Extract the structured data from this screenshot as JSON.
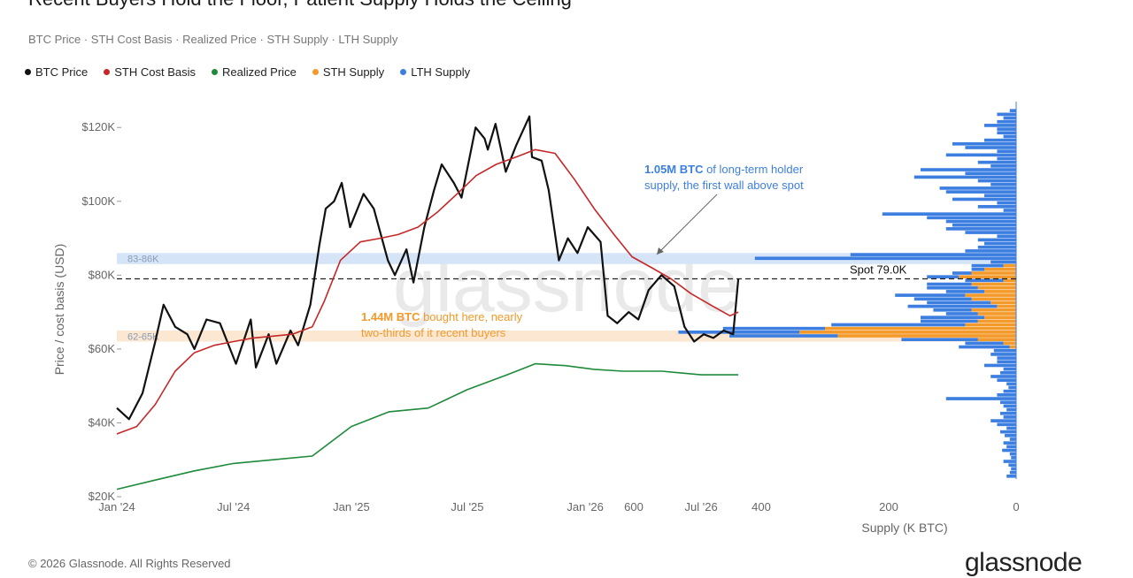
{
  "header": {
    "title": "Recent Buyers Hold the Floor, Patient Supply Holds the Ceiling",
    "subtitle": "BTC Price · STH Cost Basis · Realized Price · STH Supply · LTH Supply"
  },
  "legend": [
    {
      "label": "BTC Price",
      "color": "#111111"
    },
    {
      "label": "STH Cost Basis",
      "color": "#c62828"
    },
    {
      "label": "Realized Price",
      "color": "#1e8a3a"
    },
    {
      "label": "STH Supply",
      "color": "#f39a2b"
    },
    {
      "label": "LTH Supply",
      "color": "#3d7fe0"
    }
  ],
  "footer": {
    "copyright": "© 2026 Glassnode. All Rights Reserved",
    "brand": "glassnode"
  },
  "watermark": "glassnode",
  "annotations": {
    "lth_bold": "1.05M BTC",
    "lth_rest1": " of long-term holder",
    "lth_line2": "supply, the first wall above spot",
    "sth_bold": "1.44M BTC",
    "sth_rest1": " bought here, nearly",
    "sth_line2": "two-thirds of it recent buyers",
    "band_upper": "83-86K",
    "band_lower": "62-65K",
    "spot": "Spot 79.0K"
  },
  "chart_data": [
    {
      "type": "line",
      "title": "Recent Buyers Hold the Floor, Patient Supply Holds the Ceiling",
      "ylabel": "Price / cost basis (USD)",
      "xlabel": "",
      "ylim": [
        20000,
        127000
      ],
      "y_ticks": [
        20000,
        40000,
        60000,
        80000,
        100000,
        120000
      ],
      "y_tick_labels": [
        "$20K",
        "$40K",
        "$60K",
        "$80K",
        "$100K",
        "$120K"
      ],
      "x_ticks": [
        "2024-01-01",
        "2024-07-01",
        "2025-01-01",
        "2025-07-01",
        "2026-01-01",
        "2026-07-01"
      ],
      "x_tick_labels": [
        "Jan '24",
        "Jul '24",
        "Jan '25",
        "Jul '25",
        "Jan '26",
        "Jul '26"
      ],
      "x_range": [
        "2024-01-01",
        "2026-09-30"
      ],
      "grid": false,
      "bands": [
        {
          "label": "83-86K",
          "low": 83000,
          "high": 86000,
          "color": "#d6e4f7"
        },
        {
          "label": "62-65K",
          "low": 62000,
          "high": 65000,
          "color": "#fbe7d2"
        }
      ],
      "spot": {
        "label": "Spot 79.0K",
        "value": 79000
      },
      "series": [
        {
          "name": "BTC Price",
          "color": "#111111",
          "x": [
            "2024-01-01",
            "2024-01-20",
            "2024-02-10",
            "2024-03-01",
            "2024-03-14",
            "2024-04-01",
            "2024-04-20",
            "2024-05-01",
            "2024-05-20",
            "2024-06-10",
            "2024-07-05",
            "2024-07-28",
            "2024-08-05",
            "2024-08-25",
            "2024-09-06",
            "2024-09-28",
            "2024-10-10",
            "2024-10-29",
            "2024-11-12",
            "2024-11-22",
            "2024-12-05",
            "2024-12-17",
            "2024-12-30",
            "2025-01-20",
            "2025-02-05",
            "2025-02-27",
            "2025-03-10",
            "2025-03-28",
            "2025-04-08",
            "2025-04-25",
            "2025-05-10",
            "2025-05-22",
            "2025-06-10",
            "2025-06-22",
            "2025-07-14",
            "2025-07-28",
            "2025-08-02",
            "2025-08-14",
            "2025-08-30",
            "2025-09-15",
            "2025-10-06",
            "2025-10-10",
            "2025-10-25",
            "2025-11-05",
            "2025-11-21",
            "2025-12-05",
            "2025-12-20",
            "2026-01-05",
            "2026-01-25",
            "2026-02-05",
            "2026-02-20",
            "2026-03-10",
            "2026-03-25",
            "2026-04-10",
            "2026-04-30",
            "2026-05-20",
            "2026-06-05",
            "2026-06-20",
            "2026-07-05",
            "2026-07-20",
            "2026-08-05",
            "2026-08-20",
            "2026-08-28"
          ],
          "values": [
            44000,
            41000,
            48000,
            62000,
            72000,
            66000,
            64000,
            60000,
            68000,
            67000,
            56000,
            68000,
            55000,
            64000,
            56000,
            65000,
            61000,
            72000,
            88000,
            98000,
            100000,
            105000,
            93000,
            102000,
            98000,
            84000,
            80000,
            87000,
            78000,
            93000,
            103000,
            110000,
            105000,
            101000,
            120000,
            117000,
            114000,
            121000,
            108000,
            115000,
            123000,
            112000,
            111000,
            103000,
            84000,
            90000,
            86000,
            93000,
            89000,
            69000,
            67000,
            70000,
            68000,
            76000,
            80000,
            77000,
            66000,
            62000,
            64000,
            63000,
            65000,
            64000,
            79000
          ]
        },
        {
          "name": "STH Cost Basis",
          "color": "#c62828",
          "x": [
            "2024-01-01",
            "2024-02-01",
            "2024-03-01",
            "2024-04-01",
            "2024-05-01",
            "2024-06-01",
            "2024-07-01",
            "2024-08-01",
            "2024-09-01",
            "2024-10-01",
            "2024-11-01",
            "2024-11-20",
            "2024-12-15",
            "2025-01-15",
            "2025-02-15",
            "2025-03-15",
            "2025-04-15",
            "2025-05-15",
            "2025-06-15",
            "2025-07-15",
            "2025-08-15",
            "2025-09-15",
            "2025-10-15",
            "2025-11-15",
            "2025-12-15",
            "2026-01-15",
            "2026-02-15",
            "2026-03-15",
            "2026-04-15",
            "2026-05-15",
            "2026-06-15",
            "2026-07-15",
            "2026-08-15",
            "2026-08-28"
          ],
          "values": [
            37000,
            39000,
            45000,
            54000,
            59000,
            61000,
            62000,
            63000,
            63500,
            64000,
            66000,
            73000,
            84000,
            89000,
            90000,
            91000,
            93000,
            97000,
            102000,
            107000,
            110000,
            112000,
            114000,
            113000,
            106000,
            98000,
            91000,
            85000,
            82000,
            79000,
            75000,
            72000,
            69000,
            70000
          ]
        },
        {
          "name": "Realized Price",
          "color": "#1e8a3a",
          "x": [
            "2024-01-01",
            "2024-03-01",
            "2024-05-01",
            "2024-07-01",
            "2024-09-01",
            "2024-11-01",
            "2025-01-01",
            "2025-03-01",
            "2025-05-01",
            "2025-07-01",
            "2025-09-01",
            "2025-10-15",
            "2025-12-01",
            "2026-01-15",
            "2026-03-01",
            "2026-05-01",
            "2026-07-01",
            "2026-08-28"
          ],
          "values": [
            22000,
            24500,
            27000,
            29000,
            30000,
            31000,
            39000,
            43000,
            44000,
            49000,
            53000,
            56000,
            55500,
            54500,
            54000,
            54000,
            53000,
            53000
          ]
        }
      ]
    },
    {
      "type": "bar",
      "orientation": "horizontal",
      "xlabel": "Supply (K BTC)",
      "xlim": [
        700,
        0
      ],
      "x_ticks": [
        600,
        400,
        200,
        0
      ],
      "y_shared_with_price_axis": true,
      "bins_usd": [
        25000,
        26000,
        27000,
        28000,
        29000,
        30000,
        31000,
        32000,
        33000,
        34000,
        35000,
        36000,
        37000,
        38000,
        39000,
        40000,
        41000,
        42000,
        43000,
        44000,
        45000,
        46000,
        47000,
        48000,
        49000,
        50000,
        51000,
        52000,
        53000,
        54000,
        55000,
        56000,
        57000,
        58000,
        59000,
        60000,
        61000,
        62000,
        63000,
        64000,
        65000,
        66000,
        67000,
        68000,
        69000,
        70000,
        71000,
        72000,
        73000,
        74000,
        75000,
        76000,
        77000,
        78000,
        79000,
        80000,
        81000,
        82000,
        83000,
        84000,
        85000,
        86000,
        87000,
        88000,
        89000,
        90000,
        91000,
        92000,
        93000,
        94000,
        95000,
        96000,
        97000,
        98000,
        99000,
        100000,
        101000,
        102000,
        103000,
        104000,
        105000,
        106000,
        107000,
        108000,
        109000,
        110000,
        111000,
        112000,
        113000,
        114000,
        115000,
        116000,
        117000,
        118000,
        119000,
        120000,
        121000,
        122000,
        123000,
        124000
      ],
      "series": [
        {
          "name": "STH Supply",
          "color": "#f39a2b",
          "values": [
            0,
            0,
            0,
            0,
            0,
            0,
            0,
            0,
            0,
            0,
            0,
            0,
            0,
            0,
            0,
            0,
            0,
            0,
            0,
            0,
            0,
            0,
            0,
            0,
            0,
            0,
            0,
            0,
            0,
            0,
            0,
            0,
            0,
            0,
            0,
            10,
            20,
            60,
            280,
            340,
            300,
            80,
            60,
            50,
            60,
            70,
            30,
            40,
            70,
            80,
            50,
            60,
            70,
            20,
            90,
            70,
            50,
            20,
            0,
            0,
            0,
            0,
            0,
            0,
            0,
            0,
            0,
            0,
            0,
            0,
            0,
            0,
            0,
            0,
            0,
            0,
            0,
            0,
            0,
            0,
            0,
            0,
            0,
            0,
            0,
            0,
            0,
            0,
            0,
            0,
            0,
            0,
            0,
            0,
            0,
            0,
            0,
            0,
            0,
            0
          ]
        },
        {
          "name": "LTH Supply",
          "color": "#3d7fe0",
          "values": [
            15,
            10,
            8,
            12,
            20,
            8,
            10,
            22,
            15,
            20,
            10,
            18,
            25,
            15,
            30,
            40,
            20,
            25,
            15,
            20,
            25,
            110,
            30,
            20,
            12,
            15,
            30,
            40,
            25,
            20,
            50,
            30,
            30,
            40,
            35,
            80,
            60,
            120,
            170,
            190,
            160,
            210,
            90,
            100,
            50,
            60,
            140,
            100,
            90,
            110,
            60,
            80,
            70,
            60,
            50,
            30,
            20,
            50,
            40,
            410,
            260,
            80,
            60,
            50,
            60,
            30,
            80,
            110,
            100,
            110,
            140,
            210,
            20,
            60,
            30,
            100,
            50,
            110,
            120,
            40,
            60,
            160,
            80,
            150,
            40,
            60,
            30,
            110,
            30,
            80,
            100,
            50,
            20,
            30,
            30,
            50,
            30,
            20,
            30,
            10
          ]
        }
      ]
    }
  ]
}
